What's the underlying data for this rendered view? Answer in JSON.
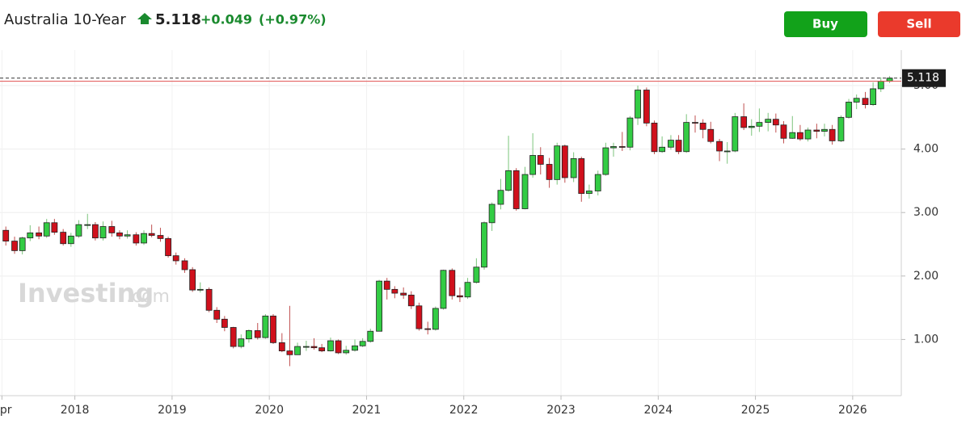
{
  "header": {
    "title": "Australia 10-Year",
    "price": 5.118,
    "change": "+0.049",
    "change_pct": "(+0.97%)",
    "buy": "Buy",
    "sell": "Sell"
  },
  "watermark": {
    "brand": "Investing",
    "suffix": ".com"
  },
  "chart_data": {
    "type": "candlestick",
    "up_color": "#33cc44",
    "down_color": "#d0101c",
    "price_line_color": "#333333",
    "prev_line_color": "#e05050",
    "last_price_path": "header.price",
    "prev_close": 5.069,
    "x": [
      2017.29,
      2017.38,
      2017.46,
      2017.54,
      2017.63,
      2017.71,
      2017.79,
      2017.88,
      2017.96,
      2018.04,
      2018.13,
      2018.21,
      2018.29,
      2018.38,
      2018.46,
      2018.54,
      2018.63,
      2018.71,
      2018.79,
      2018.88,
      2018.96,
      2019.04,
      2019.13,
      2019.21,
      2019.29,
      2019.38,
      2019.46,
      2019.54,
      2019.63,
      2019.71,
      2019.79,
      2019.88,
      2019.96,
      2020.04,
      2020.13,
      2020.21,
      2020.29,
      2020.38,
      2020.46,
      2020.54,
      2020.63,
      2020.71,
      2020.79,
      2020.88,
      2020.96,
      2021.04,
      2021.13,
      2021.21,
      2021.29,
      2021.38,
      2021.46,
      2021.54,
      2021.63,
      2021.71,
      2021.79,
      2021.88,
      2021.96,
      2022.04,
      2022.13,
      2022.21,
      2022.29,
      2022.38,
      2022.46,
      2022.54,
      2022.63,
      2022.71,
      2022.79,
      2022.88,
      2022.96,
      2023.04,
      2023.13,
      2023.21,
      2023.29,
      2023.38,
      2023.46,
      2023.54,
      2023.63,
      2023.71,
      2023.79,
      2023.88,
      2023.96,
      2024.04,
      2024.13,
      2024.21,
      2024.29,
      2024.38,
      2024.46,
      2024.54,
      2024.63,
      2024.71,
      2024.79,
      2024.88,
      2024.96,
      2025.04,
      2025.13,
      2025.21,
      2025.29,
      2025.38,
      2025.46,
      2025.54,
      2025.63,
      2025.71,
      2025.79,
      2025.88,
      2025.96,
      2026.04,
      2026.13,
      2026.21,
      2026.29,
      2026.38
    ],
    "open": [
      2.72,
      2.55,
      2.4,
      2.6,
      2.68,
      2.63,
      2.84,
      2.69,
      2.51,
      2.63,
      2.81,
      2.81,
      2.6,
      2.78,
      2.68,
      2.63,
      2.65,
      2.52,
      2.67,
      2.64,
      2.59,
      2.32,
      2.24,
      2.1,
      1.78,
      1.79,
      1.46,
      1.32,
      1.19,
      0.89,
      1.01,
      1.14,
      1.03,
      1.37,
      0.95,
      0.82,
      0.76,
      0.89,
      0.89,
      0.87,
      0.82,
      0.98,
      0.79,
      0.83,
      0.9,
      0.97,
      1.13,
      1.92,
      1.79,
      1.73,
      1.7,
      1.53,
      1.17,
      1.16,
      1.49,
      2.09,
      1.69,
      1.67,
      1.9,
      2.14,
      2.84,
      3.13,
      3.35,
      3.66,
      3.06,
      3.6,
      3.9,
      3.76,
      3.52,
      4.05,
      3.55,
      3.85,
      3.3,
      3.34,
      3.6,
      4.02,
      4.04,
      4.03,
      4.49,
      4.93,
      4.41,
      3.96,
      4.03,
      4.14,
      3.96,
      4.42,
      4.41,
      4.31,
      4.12,
      3.97,
      3.97,
      4.51,
      4.34,
      4.36,
      4.42,
      4.47,
      4.38,
      4.17,
      4.26,
      4.16,
      4.3,
      4.28,
      4.31,
      4.13,
      4.5,
      4.74,
      4.8,
      4.7,
      4.95,
      5.069
    ],
    "high": [
      2.78,
      2.62,
      2.62,
      2.8,
      2.78,
      2.9,
      2.9,
      2.74,
      2.68,
      2.88,
      2.98,
      2.85,
      2.86,
      2.87,
      2.72,
      2.72,
      2.69,
      2.72,
      2.81,
      2.76,
      2.62,
      2.37,
      2.28,
      2.14,
      1.9,
      1.82,
      1.51,
      1.37,
      1.2,
      1.08,
      1.16,
      1.26,
      1.4,
      1.4,
      1.1,
      1.53,
      0.95,
      0.98,
      1.02,
      0.93,
      1.03,
      1.0,
      0.9,
      1.0,
      1.02,
      1.17,
      1.94,
      1.97,
      1.84,
      1.82,
      1.76,
      1.58,
      1.28,
      1.52,
      2.1,
      2.12,
      1.82,
      1.97,
      2.28,
      2.86,
      3.16,
      3.53,
      4.21,
      3.7,
      3.72,
      4.25,
      4.03,
      3.86,
      4.1,
      4.07,
      3.95,
      3.88,
      3.44,
      3.66,
      4.1,
      4.1,
      4.27,
      4.52,
      5.0,
      4.97,
      4.45,
      4.2,
      4.22,
      4.22,
      4.55,
      4.53,
      4.47,
      4.43,
      4.16,
      4.11,
      4.57,
      4.72,
      4.47,
      4.64,
      4.57,
      4.56,
      4.44,
      4.52,
      4.38,
      4.34,
      4.4,
      4.4,
      4.38,
      4.53,
      4.79,
      4.86,
      4.9,
      5.05,
      5.13,
      5.15
    ],
    "low": [
      2.48,
      2.35,
      2.34,
      2.55,
      2.58,
      2.6,
      2.65,
      2.48,
      2.46,
      2.6,
      2.74,
      2.56,
      2.56,
      2.62,
      2.58,
      2.59,
      2.48,
      2.49,
      2.61,
      2.54,
      2.29,
      2.18,
      2.05,
      1.75,
      1.74,
      1.43,
      1.26,
      1.13,
      0.86,
      0.86,
      0.95,
      1.0,
      1.01,
      0.93,
      0.8,
      0.58,
      0.76,
      0.82,
      0.84,
      0.8,
      0.81,
      0.77,
      0.76,
      0.81,
      0.88,
      0.95,
      1.13,
      1.63,
      1.65,
      1.64,
      1.48,
      1.14,
      1.08,
      1.14,
      1.47,
      1.63,
      1.59,
      1.64,
      1.88,
      2.1,
      2.71,
      3.05,
      3.33,
      3.03,
      3.05,
      3.55,
      3.6,
      3.39,
      3.44,
      3.47,
      3.48,
      3.17,
      3.22,
      3.27,
      3.58,
      3.88,
      3.97,
      3.98,
      4.38,
      4.36,
      3.92,
      3.94,
      3.99,
      3.92,
      3.94,
      4.26,
      4.17,
      4.09,
      3.81,
      3.77,
      3.95,
      4.3,
      4.21,
      4.27,
      4.28,
      4.26,
      4.09,
      4.16,
      4.13,
      4.12,
      4.17,
      4.2,
      4.07,
      4.11,
      4.48,
      4.63,
      4.64,
      4.68,
      4.9,
      5.04
    ],
    "close": [
      2.55,
      2.4,
      2.6,
      2.68,
      2.63,
      2.84,
      2.69,
      2.51,
      2.63,
      2.81,
      2.81,
      2.6,
      2.78,
      2.68,
      2.63,
      2.65,
      2.52,
      2.67,
      2.64,
      2.59,
      2.32,
      2.24,
      2.1,
      1.78,
      1.79,
      1.46,
      1.32,
      1.19,
      0.89,
      1.01,
      1.14,
      1.03,
      1.37,
      0.95,
      0.82,
      0.76,
      0.89,
      0.89,
      0.87,
      0.82,
      0.98,
      0.79,
      0.83,
      0.9,
      0.97,
      1.13,
      1.92,
      1.79,
      1.73,
      1.7,
      1.53,
      1.17,
      1.16,
      1.49,
      2.09,
      1.69,
      1.67,
      1.9,
      2.14,
      2.84,
      3.13,
      3.35,
      3.66,
      3.06,
      3.6,
      3.9,
      3.76,
      3.52,
      4.05,
      3.55,
      3.85,
      3.3,
      3.34,
      3.6,
      4.02,
      4.04,
      4.03,
      4.49,
      4.93,
      4.41,
      3.96,
      4.03,
      4.14,
      3.96,
      4.42,
      4.41,
      4.31,
      4.12,
      3.97,
      3.97,
      4.51,
      4.34,
      4.36,
      4.42,
      4.47,
      4.38,
      4.17,
      4.26,
      4.16,
      4.3,
      4.28,
      4.31,
      4.13,
      4.5,
      4.74,
      4.8,
      4.7,
      4.95,
      5.069,
      5.118
    ],
    "xlim": [
      2017.23,
      2026.5
    ],
    "xticks": [
      {
        "value": 2017.25,
        "label": "Apr"
      },
      2018,
      2019,
      2020,
      2021,
      2022,
      2023,
      2024,
      2025,
      2026
    ],
    "ylim": [
      0.115,
      5.56
    ],
    "yticks": [
      {
        "value": 1,
        "label": "1.00"
      },
      {
        "value": 2,
        "label": "2.00"
      },
      {
        "value": 3,
        "label": "3.00"
      },
      {
        "value": 4,
        "label": "4.00"
      },
      {
        "value": 5,
        "label": "5.00"
      }
    ],
    "grid": true
  }
}
